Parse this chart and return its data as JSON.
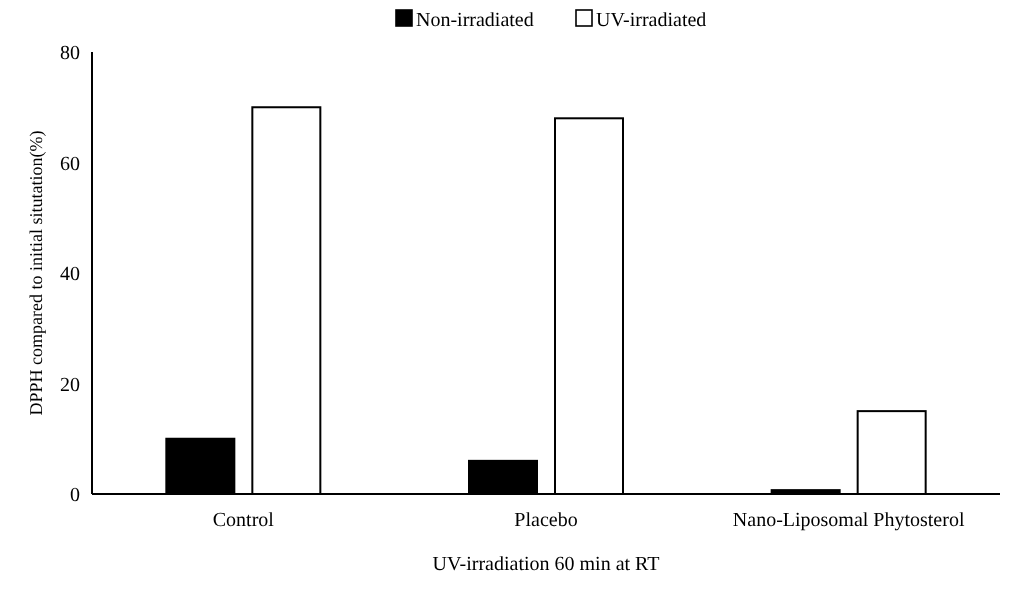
{
  "chart_data": {
    "type": "bar",
    "xlabel": "UV-irradiation 60 min at RT",
    "ylabel": "DPPH compared to initial situtation(%)",
    "categories": [
      "Control",
      "Placebo",
      "Nano-Liposomal Phytosterol"
    ],
    "series": [
      {
        "name": "Non-irradiated",
        "color": "#000000",
        "values": [
          10,
          6,
          0.7
        ]
      },
      {
        "name": "UV-irradiated",
        "color": "#ffffff",
        "values": [
          70,
          68,
          15
        ]
      }
    ],
    "ylim": [
      0,
      80
    ],
    "yticks": [
      0,
      20,
      40,
      60,
      80
    ],
    "legend": "top",
    "grid": false
  }
}
